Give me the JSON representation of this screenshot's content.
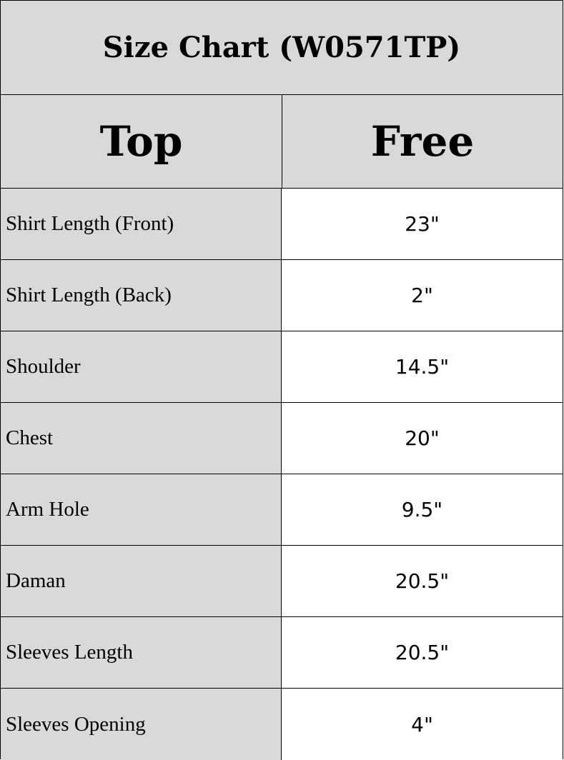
{
  "title": "Size Chart (W0571TP)",
  "header": {
    "col1": "Top",
    "col2": "Free"
  },
  "rows": [
    {
      "label": "Shirt Length (Front)",
      "value": "23\""
    },
    {
      "label": "Shirt Length (Back)",
      "value": "2\""
    },
    {
      "label": "Shoulder",
      "value": "14.5\""
    },
    {
      "label": "Chest",
      "value": "20\""
    },
    {
      "label": "Arm Hole",
      "value": "9.5\""
    },
    {
      "label": "Daman",
      "value": "20.5\""
    },
    {
      "label": "Sleeves Length",
      "value": "20.5\""
    },
    {
      "label": "Sleeves Opening",
      "value": "4\""
    }
  ],
  "colors": {
    "label_bg": "#d9d9d9",
    "value_bg": "#ffffff",
    "border": "#000000"
  }
}
